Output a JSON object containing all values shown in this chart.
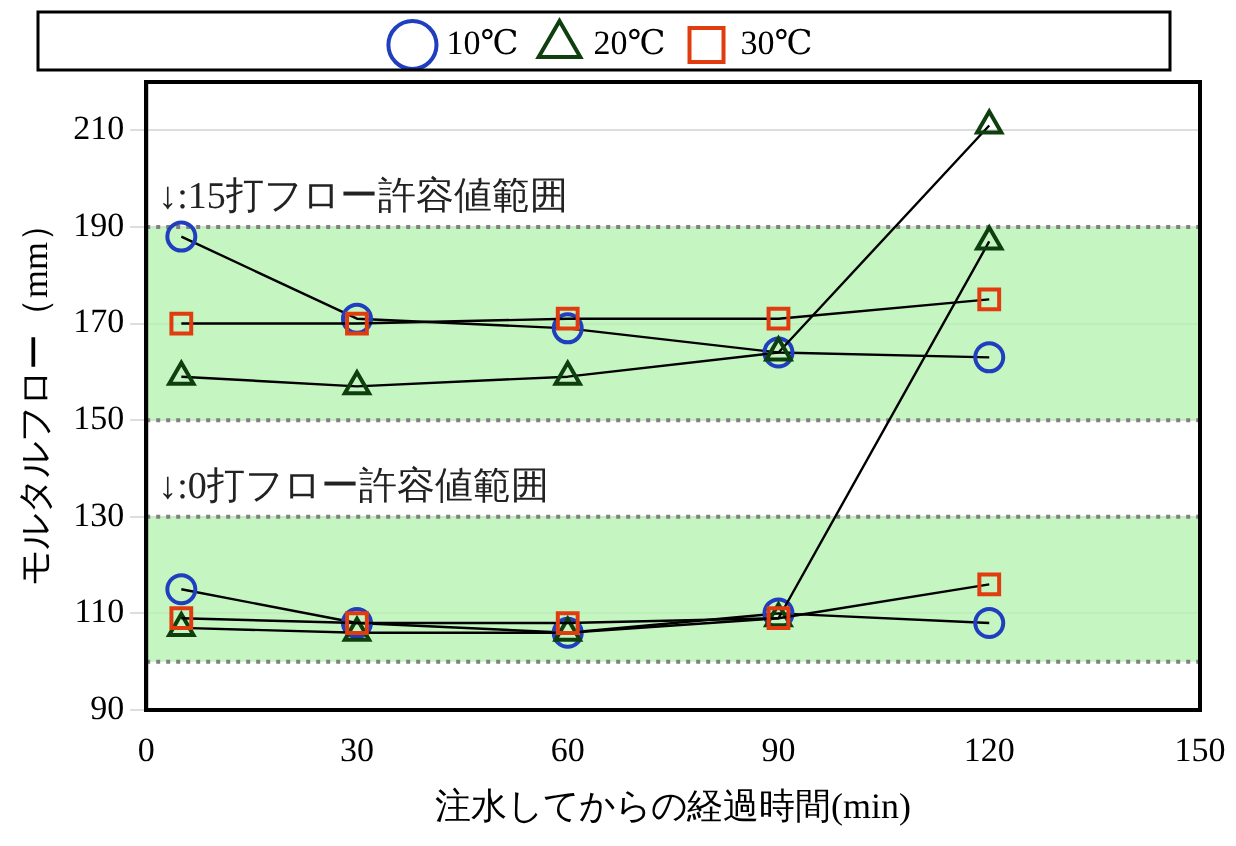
{
  "chart_data": {
    "type": "line",
    "xlabel": "注水してからの経過時間(min)",
    "ylabel": "モルタルフロー（mm）",
    "xlim": [
      0,
      150
    ],
    "xticks": [
      0,
      30,
      60,
      90,
      120,
      150
    ],
    "ylim": [
      90,
      220
    ],
    "yticks": [
      90,
      110,
      130,
      150,
      170,
      190,
      210
    ],
    "grid": "y",
    "legend": "top",
    "line_style": "solid",
    "bands": [
      {
        "axis": "y",
        "from": 150,
        "to": 190,
        "color": "#b6f2b0"
      },
      {
        "axis": "y",
        "from": 100,
        "to": 130,
        "color": "#b6f2b0"
      }
    ],
    "annotations": [
      "↓:15打フロー許容値範囲",
      "↓:0打フロー許容値範囲"
    ],
    "series": [
      {
        "name": "10℃",
        "color": "#1f3fbf",
        "marker": "circle",
        "x": [
          5,
          30,
          60,
          90,
          120
        ],
        "values": [
          188,
          171,
          169,
          164,
          163
        ]
      },
      {
        "name": "20℃",
        "color": "#0f3f0f",
        "marker": "triangle",
        "x": [
          5,
          30,
          60,
          90,
          120
        ],
        "values": [
          159,
          157,
          159,
          164,
          211
        ]
      },
      {
        "name": "30℃",
        "color": "#e03c10",
        "marker": "square",
        "x": [
          5,
          30,
          60,
          90,
          120
        ],
        "values": [
          170,
          170,
          171,
          171,
          175
        ]
      },
      {
        "color": "#1f3fbf",
        "marker": "circle",
        "x": [
          5,
          30,
          60,
          90,
          120
        ],
        "values": [
          115,
          108,
          106,
          110,
          108
        ]
      },
      {
        "color": "#0f3f0f",
        "marker": "triangle",
        "x": [
          5,
          30,
          60,
          90,
          120
        ],
        "values": [
          107,
          106,
          106,
          109,
          187
        ]
      },
      {
        "color": "#e03c10",
        "marker": "square",
        "x": [
          5,
          30,
          60,
          90,
          120
        ],
        "values": [
          109,
          108,
          108,
          109,
          116
        ]
      }
    ]
  }
}
